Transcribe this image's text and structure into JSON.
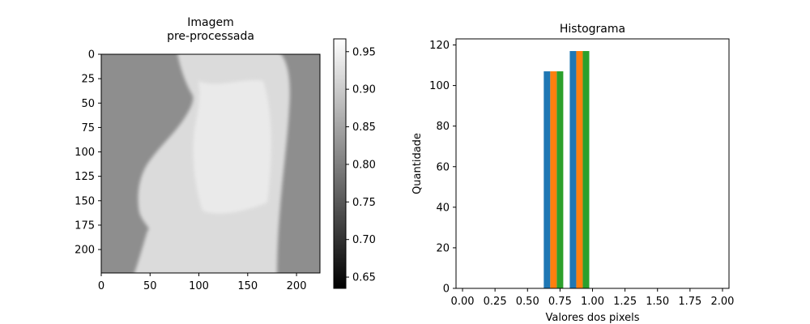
{
  "chart_data": [
    {
      "type": "heatmap",
      "title": "Imagem\npre-processada",
      "xlim": [
        0,
        224
      ],
      "ylim": [
        224,
        0
      ],
      "xticks": [
        0,
        50,
        100,
        150,
        200
      ],
      "yticks": [
        0,
        25,
        50,
        75,
        100,
        125,
        150,
        175,
        200
      ],
      "colorbar": {
        "colormap": "gray",
        "range": [
          0.635,
          0.967
        ],
        "ticks": [
          "0.65",
          "0.70",
          "0.75",
          "0.80",
          "0.85",
          "0.90",
          "0.95"
        ]
      },
      "background_value": 0.82,
      "subject_value": 0.92,
      "grid": false
    },
    {
      "type": "bar",
      "title": "Histograma",
      "xlabel": "Valores dos pixels",
      "ylabel": "Quantidade",
      "xlim": [
        -0.05,
        2.05
      ],
      "ylim": [
        0,
        123
      ],
      "xticks": [
        "0.00",
        "0.25",
        "0.50",
        "0.75",
        "1.00",
        "1.25",
        "1.50",
        "1.75",
        "2.00"
      ],
      "yticks": [
        "0",
        "20",
        "40",
        "60",
        "80",
        "100",
        "120"
      ],
      "bins": [
        {
          "center": 0.7,
          "width": 0.15
        },
        {
          "center": 0.9,
          "width": 0.15
        }
      ],
      "series": [
        {
          "color": "#1f77b4",
          "values": [
            107,
            117
          ]
        },
        {
          "color": "#ff7f0e",
          "values": [
            107,
            117
          ]
        },
        {
          "color": "#2ca02c",
          "values": [
            107,
            117
          ]
        }
      ],
      "grid": false
    }
  ]
}
